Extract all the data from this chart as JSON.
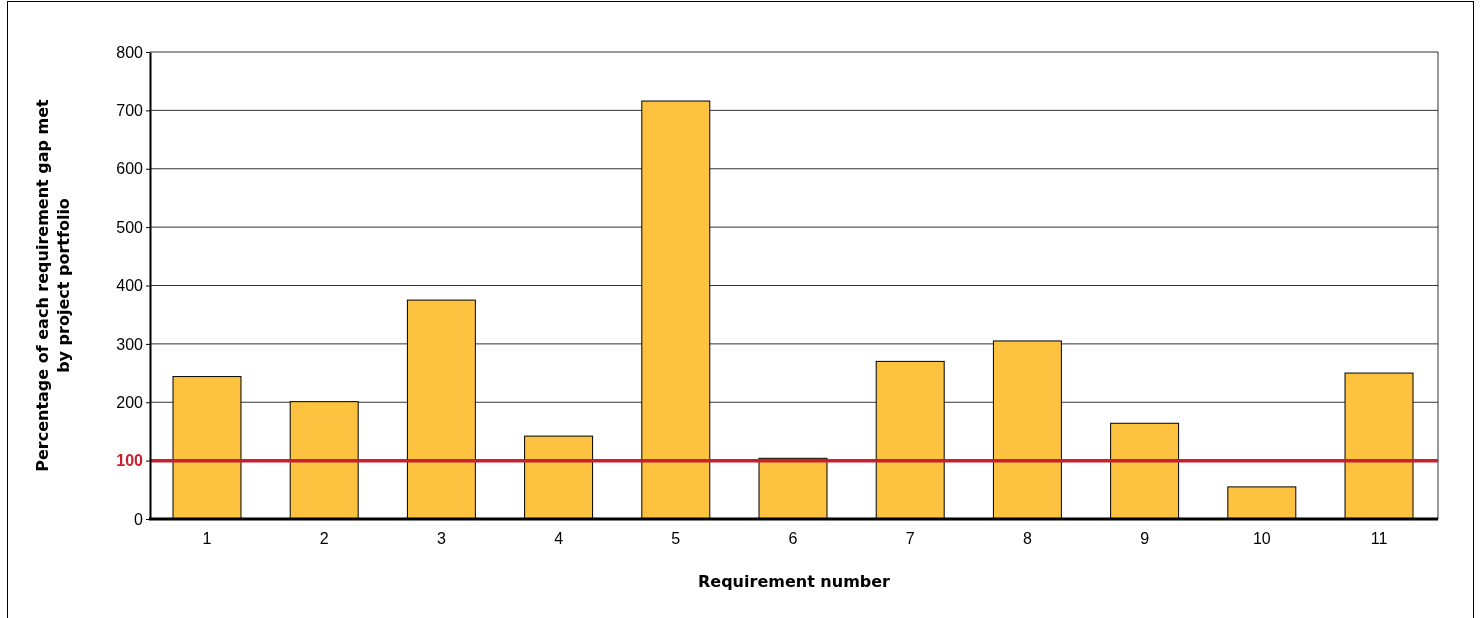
{
  "chart_data": {
    "type": "bar",
    "xlabel": "Requirement number",
    "ylabel": "Percentage of each requirement gap met\nby project portfolio",
    "categories": [
      "1",
      "2",
      "3",
      "4",
      "5",
      "6",
      "7",
      "8",
      "9",
      "10",
      "11"
    ],
    "values": [
      244,
      201,
      375,
      142,
      716,
      104,
      270,
      305,
      164,
      55,
      250
    ],
    "color": "#fdc240",
    "ylim": [
      0,
      800
    ],
    "yticks": [
      0,
      100,
      200,
      300,
      400,
      500,
      600,
      700,
      800
    ],
    "grid": "y",
    "ref_lines": [
      {
        "axis": "y",
        "value": 100,
        "color": "#c8202f"
      }
    ]
  }
}
